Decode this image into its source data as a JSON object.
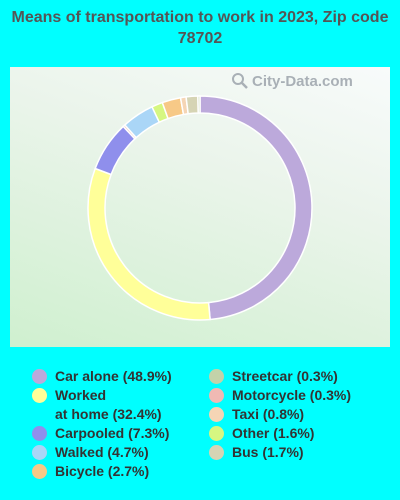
{
  "chart_data": {
    "type": "pie",
    "title": "Means of transportation to work in 2023, Zip code 78702",
    "donut": true,
    "series": [
      {
        "name": "Car alone",
        "value": 48.9,
        "color": "#bca9db",
        "legend": "Car alone (48.9%)"
      },
      {
        "name": "Worked at home",
        "value": 32.4,
        "color": "#ffff99",
        "legend": "Worked\nat home (32.4%)"
      },
      {
        "name": "Carpooled",
        "value": 7.3,
        "color": "#8f8fec",
        "legend": "Carpooled (7.3%)"
      },
      {
        "name": "Motorcycle",
        "value": 0.3,
        "color": "#f0b9b3",
        "legend": "Motorcycle (0.3%)"
      },
      {
        "name": "Walked",
        "value": 4.7,
        "color": "#aad6f7",
        "legend": "Walked (4.7%)"
      },
      {
        "name": "Other",
        "value": 1.6,
        "color": "#d6f781",
        "legend": "Other (1.6%)"
      },
      {
        "name": "Bicycle",
        "value": 2.7,
        "color": "#f7c987",
        "legend": "Bicycle (2.7%)"
      },
      {
        "name": "Taxi",
        "value": 0.8,
        "color": "#f5d5b5",
        "legend": "Taxi (0.8%)"
      },
      {
        "name": "Bus",
        "value": 1.7,
        "color": "#d6d4b4",
        "legend": "Bus (1.7%)"
      },
      {
        "name": "Streetcar",
        "value": 0.3,
        "color": "#c3d2a9",
        "legend": "Streetcar (0.3%)"
      }
    ],
    "legend_left": [
      "Car alone",
      "Worked at home",
      "Carpooled",
      "Walked",
      "Bicycle"
    ],
    "legend_right": [
      "Streetcar",
      "Motorcycle",
      "Taxi",
      "Other",
      "Bus"
    ]
  },
  "watermark": {
    "text": "City-Data.com",
    "icon": "magnifier-icon"
  }
}
